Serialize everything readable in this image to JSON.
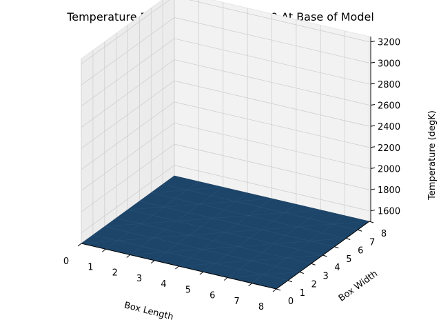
{
  "chart_data": {
    "type": "surface3d",
    "title": "Temperature Distribution at Time 15.0 At Base of Model",
    "xlabel": "Box Length",
    "ylabel": "Box Width",
    "zlabel": "Temperature (degK)",
    "xticks": [
      "0",
      "1",
      "2",
      "3",
      "4",
      "5",
      "6",
      "7",
      "8"
    ],
    "yticks": [
      "0",
      "1",
      "2",
      "3",
      "4",
      "5",
      "6",
      "7",
      "8"
    ],
    "zticks": [
      "1600",
      "1800",
      "2000",
      "2200",
      "2400",
      "2600",
      "2800",
      "3000",
      "3200"
    ],
    "xlim": [
      0,
      8
    ],
    "ylim": [
      0,
      8
    ],
    "zlim": [
      1500,
      3250
    ],
    "grid": true,
    "surface_color": "#1d4569",
    "surface": {
      "x": [
        0,
        8
      ],
      "y": [
        0,
        8
      ],
      "z": [
        [
          1500,
          1500
        ],
        [
          1500,
          1500
        ]
      ]
    }
  }
}
